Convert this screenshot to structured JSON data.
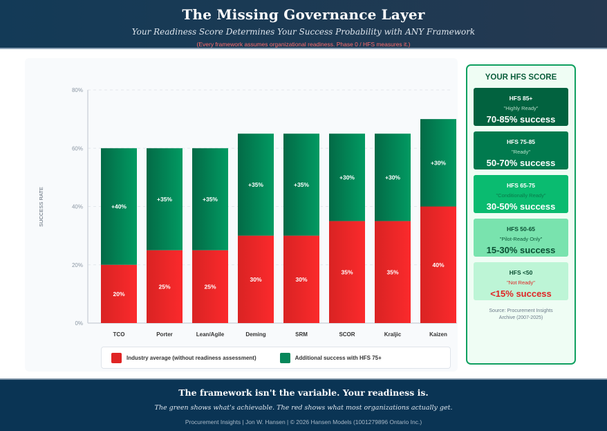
{
  "header": {
    "title": "The Missing Governance Layer",
    "subtitle": "Your Readiness Score Determines Your Success Probability with ANY Framework",
    "note": "(Every framework assumes organizational readiness. Phase 0 / HFS measures it.)"
  },
  "chart_data": {
    "type": "bar",
    "stacked": true,
    "categories": [
      "TCO",
      "Porter",
      "Lean/Agile",
      "Deming",
      "SRM",
      "SCOR",
      "Kraljic",
      "Kaizen"
    ],
    "series": [
      {
        "name": "Industry average (without readiness assessment)",
        "color": "#e02424",
        "values": [
          20,
          25,
          25,
          30,
          30,
          35,
          35,
          40
        ],
        "labels": [
          "20%",
          "25%",
          "25%",
          "30%",
          "30%",
          "35%",
          "35%",
          "40%"
        ]
      },
      {
        "name": "Additional success with HFS 75+",
        "color": "#05875a",
        "values": [
          40,
          35,
          35,
          35,
          35,
          30,
          30,
          30
        ],
        "labels": [
          "+40%",
          "+35%",
          "+35%",
          "+35%",
          "+35%",
          "+30%",
          "+30%",
          "+30%"
        ]
      }
    ],
    "ylabel": "SUCCESS RATE",
    "ylim": [
      0,
      80
    ],
    "yticks": [
      "0%",
      "20%",
      "40%",
      "60%",
      "80%"
    ],
    "grid": true,
    "legend": "bottom"
  },
  "sidebar": {
    "title": "YOUR HFS SCORE",
    "tiers": [
      {
        "label": "HFS 85+",
        "status": "\"Highly Ready\"",
        "value": "70-85% success",
        "bg": "#02623f",
        "fg": "#ffffff",
        "sub": "#b7dcc8"
      },
      {
        "label": "HFS 75-85",
        "status": "\"Ready\"",
        "value": "50-70% success",
        "bg": "#017a4e",
        "fg": "#ffffff",
        "sub": "#b7e4cc"
      },
      {
        "label": "HFS 65-75",
        "status": "\"Conditionally Ready\"",
        "value": "30-50% success",
        "bg": "#0abb70",
        "fg": "#ffffff",
        "sub": "#0b7a4a"
      },
      {
        "label": "HFS 50-65",
        "status": "\"Pilot-Ready Only\"",
        "value": "15-30% success",
        "bg": "#79e3ae",
        "fg": "#0b4f33",
        "sub": "#0e5a3a"
      },
      {
        "label": "HFS <50",
        "status": "\"Not Ready\"",
        "value": "<15% success",
        "bg": "#bdf5d6",
        "fg": "#0b4f33",
        "sub": "#e02424",
        "valColor": "#e02424"
      }
    ],
    "source": "Source: Procurement Insights Archive (2007-2025)"
  },
  "footer": {
    "headline": "The framework isn't the variable. Your readiness is.",
    "tagline": "The green shows what's achievable. The red shows what most organizations actually get.",
    "credit": "Procurement Insights | Jon W. Hansen | © 2026 Hansen Models (1001279896 Ontario Inc.)"
  }
}
